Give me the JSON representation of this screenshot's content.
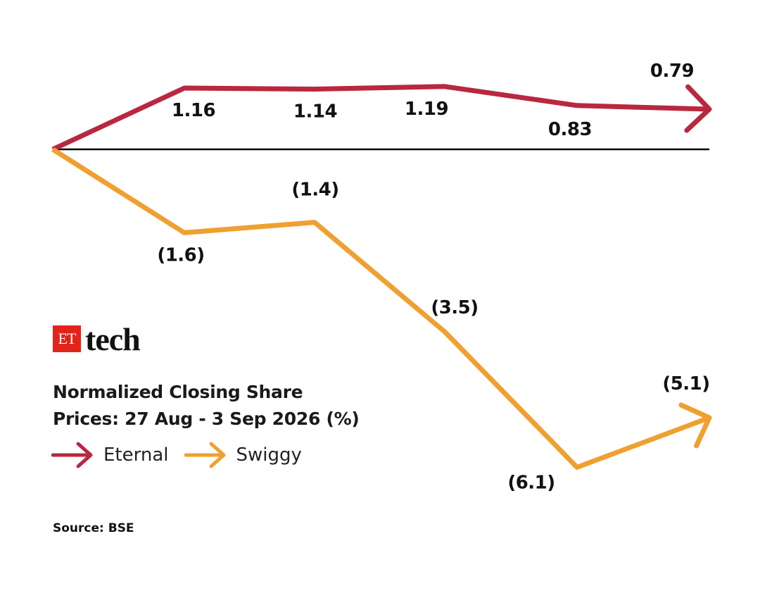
{
  "brand": {
    "logo_box_text": "ET",
    "logo_word": "tech"
  },
  "title": "Normalized Closing Share\nPrices: 27 Aug - 3 Sep 2026 (%)",
  "source": "Source: BSE",
  "colors": {
    "eternal": "#b8283f",
    "swiggy": "#f0a030",
    "baseline": "#000000",
    "brand_red": "#e2231a"
  },
  "chart_data": {
    "type": "line",
    "title": "Normalized Closing Share Prices: 27 Aug - 3 Sep 2026 (%)",
    "x": [
      0,
      1,
      2,
      3,
      4,
      5
    ],
    "series": [
      {
        "name": "Eternal",
        "values": [
          0,
          1.16,
          1.14,
          1.19,
          0.83,
          0.79
        ],
        "labels": [
          "",
          "1.16",
          "1.14",
          "1.19",
          "0.83",
          "0.79"
        ],
        "color": "#b8283f"
      },
      {
        "name": "Swiggy",
        "values": [
          0,
          -1.6,
          -1.4,
          -3.5,
          -6.1,
          -5.1
        ],
        "labels": [
          "",
          "(1.6)",
          "(1.4)",
          "(3.5)",
          "(6.1)",
          "(5.1)"
        ],
        "color": "#f0a030"
      }
    ],
    "baseline": 0,
    "legend": "bottom-left",
    "grid": false
  }
}
